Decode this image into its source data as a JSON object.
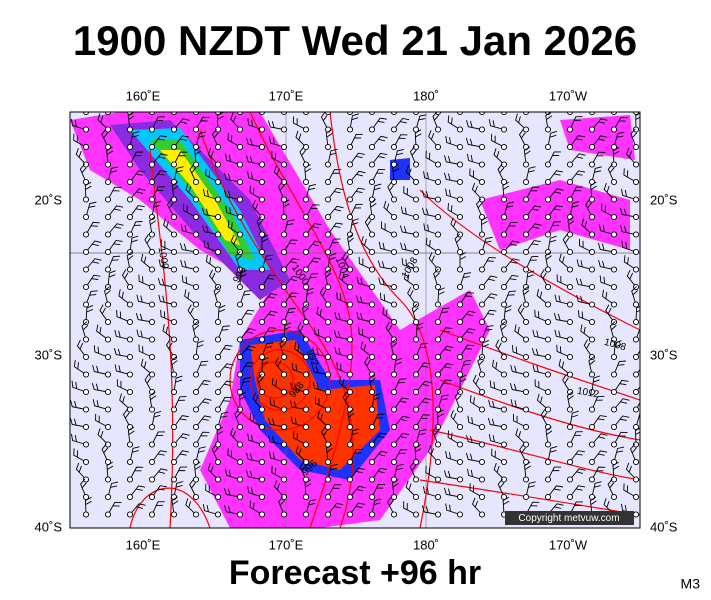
{
  "header": {
    "title": "1900 NZDT Wed 21 Jan 2026"
  },
  "map": {
    "longitude_labels": [
      "160˚E",
      "170˚E",
      "180˚",
      "170˚W"
    ],
    "latitude_labels": [
      "20˚S",
      "30˚S",
      "40˚S"
    ],
    "contour_labels": [
      "1000",
      "996",
      "1000",
      "1004",
      "1008",
      "1008",
      "1012",
      "988",
      "992",
      "996"
    ],
    "copyright": "Copyright metvuw.com"
  },
  "footer": {
    "forecast": "Forecast +96 hr",
    "model": "M3"
  }
}
